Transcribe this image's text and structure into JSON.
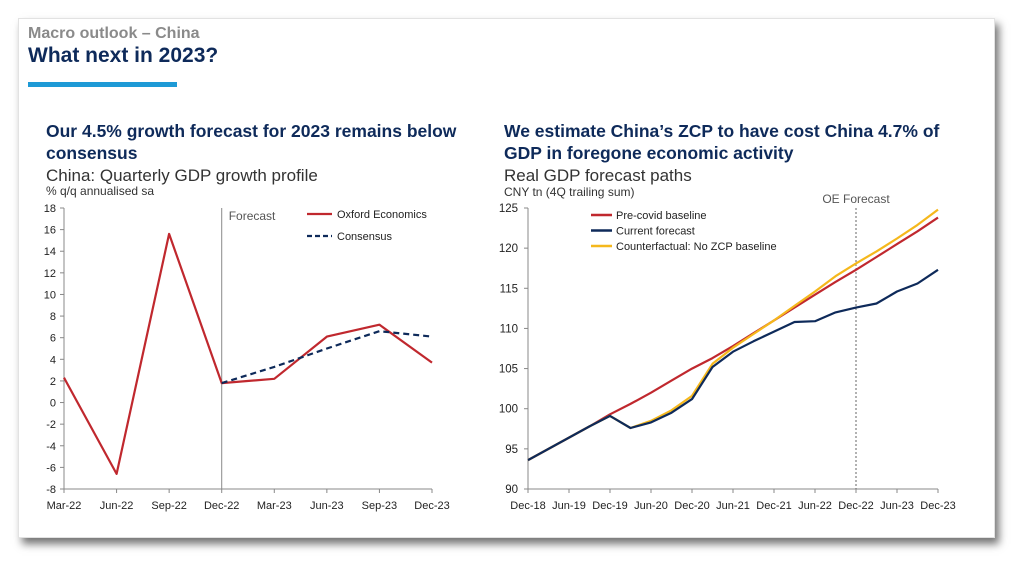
{
  "header": {
    "kicker": "Macro outlook – China",
    "title": "What next in 2023?"
  },
  "left_panel": {
    "headline": "Our 4.5% growth forecast for 2023 remains below consensus",
    "subtitle": "China: Quarterly GDP growth profile",
    "unit": "% q/q annualised sa"
  },
  "right_panel": {
    "headline": "We estimate China’s ZCP to have cost China 4.7% of GDP in foregone economic activity",
    "subtitle": "Real GDP forecast paths",
    "unit": "CNY tn (4Q trailing sum)"
  },
  "colors": {
    "red": "#c0282e",
    "navy": "#0e2a5a",
    "yellow": "#f5b81c",
    "accent": "#1e9ad6"
  },
  "chart_data": [
    {
      "type": "line",
      "categories": [
        "Mar-22",
        "Jun-22",
        "Sep-22",
        "Dec-22",
        "Mar-23",
        "Jun-23",
        "Sep-23",
        "Dec-23"
      ],
      "ylim": [
        -8,
        18
      ],
      "yticks": [
        -8,
        -6,
        -4,
        -2,
        0,
        2,
        4,
        6,
        8,
        10,
        12,
        14,
        16,
        18
      ],
      "ytick_labels": [
        "-8",
        "-6",
        "-4",
        "-2",
        "0",
        "2",
        "4",
        "6",
        "8",
        "10",
        "12",
        "14",
        "16",
        "18"
      ],
      "annotation": "Forecast",
      "annotation_at": "Dec-22",
      "series": [
        {
          "name": "Oxford Economics",
          "color": "#c0282e",
          "dashed": false,
          "values": [
            2.3,
            -6.6,
            15.6,
            1.8,
            2.2,
            6.1,
            7.2,
            3.7
          ]
        },
        {
          "name": "Consensus",
          "color": "#0e2a5a",
          "dashed": true,
          "values": [
            null,
            null,
            null,
            1.8,
            3.3,
            5.0,
            6.6,
            6.1
          ]
        }
      ]
    },
    {
      "type": "line",
      "x_labels": [
        "Dec-18",
        "Jun-19",
        "Dec-19",
        "Jun-20",
        "Dec-20",
        "Jun-21",
        "Dec-21",
        "Jun-22",
        "Dec-22",
        "Jun-23",
        "Dec-23"
      ],
      "ylim": [
        90,
        125
      ],
      "yticks": [
        90,
        95,
        100,
        105,
        110,
        115,
        120,
        125
      ],
      "ytick_labels": [
        "90",
        "95",
        "100",
        "105",
        "110",
        "115",
        "120",
        "125"
      ],
      "annotation": "OE Forecast",
      "annotation_at_index": 16,
      "series": [
        {
          "name": "Pre-covid baseline",
          "color": "#c0282e",
          "values": [
            93.6,
            95.0,
            96.4,
            97.8,
            99.3,
            100.6,
            102.0,
            103.5,
            105.0,
            106.3,
            107.8,
            109.4,
            111.0,
            112.6,
            114.2,
            115.8,
            117.3,
            118.9,
            120.5,
            122.1,
            123.8
          ]
        },
        {
          "name": "Current forecast",
          "color": "#0e2a5a",
          "values": [
            93.6,
            95.0,
            96.4,
            97.8,
            99.1,
            97.6,
            98.3,
            99.5,
            101.2,
            105.2,
            107.1,
            108.4,
            109.6,
            110.8,
            110.9,
            112.0,
            112.6,
            113.1,
            114.6,
            115.6,
            117.3
          ]
        },
        {
          "name": "Counterfactual: No ZCP baseline",
          "color": "#f5b81c",
          "values": [
            93.6,
            95.0,
            96.4,
            97.8,
            99.1,
            97.6,
            98.5,
            99.8,
            101.6,
            105.6,
            107.6,
            109.3,
            111.0,
            112.8,
            114.6,
            116.5,
            118.1,
            119.6,
            121.2,
            122.9,
            124.8
          ]
        }
      ]
    }
  ]
}
